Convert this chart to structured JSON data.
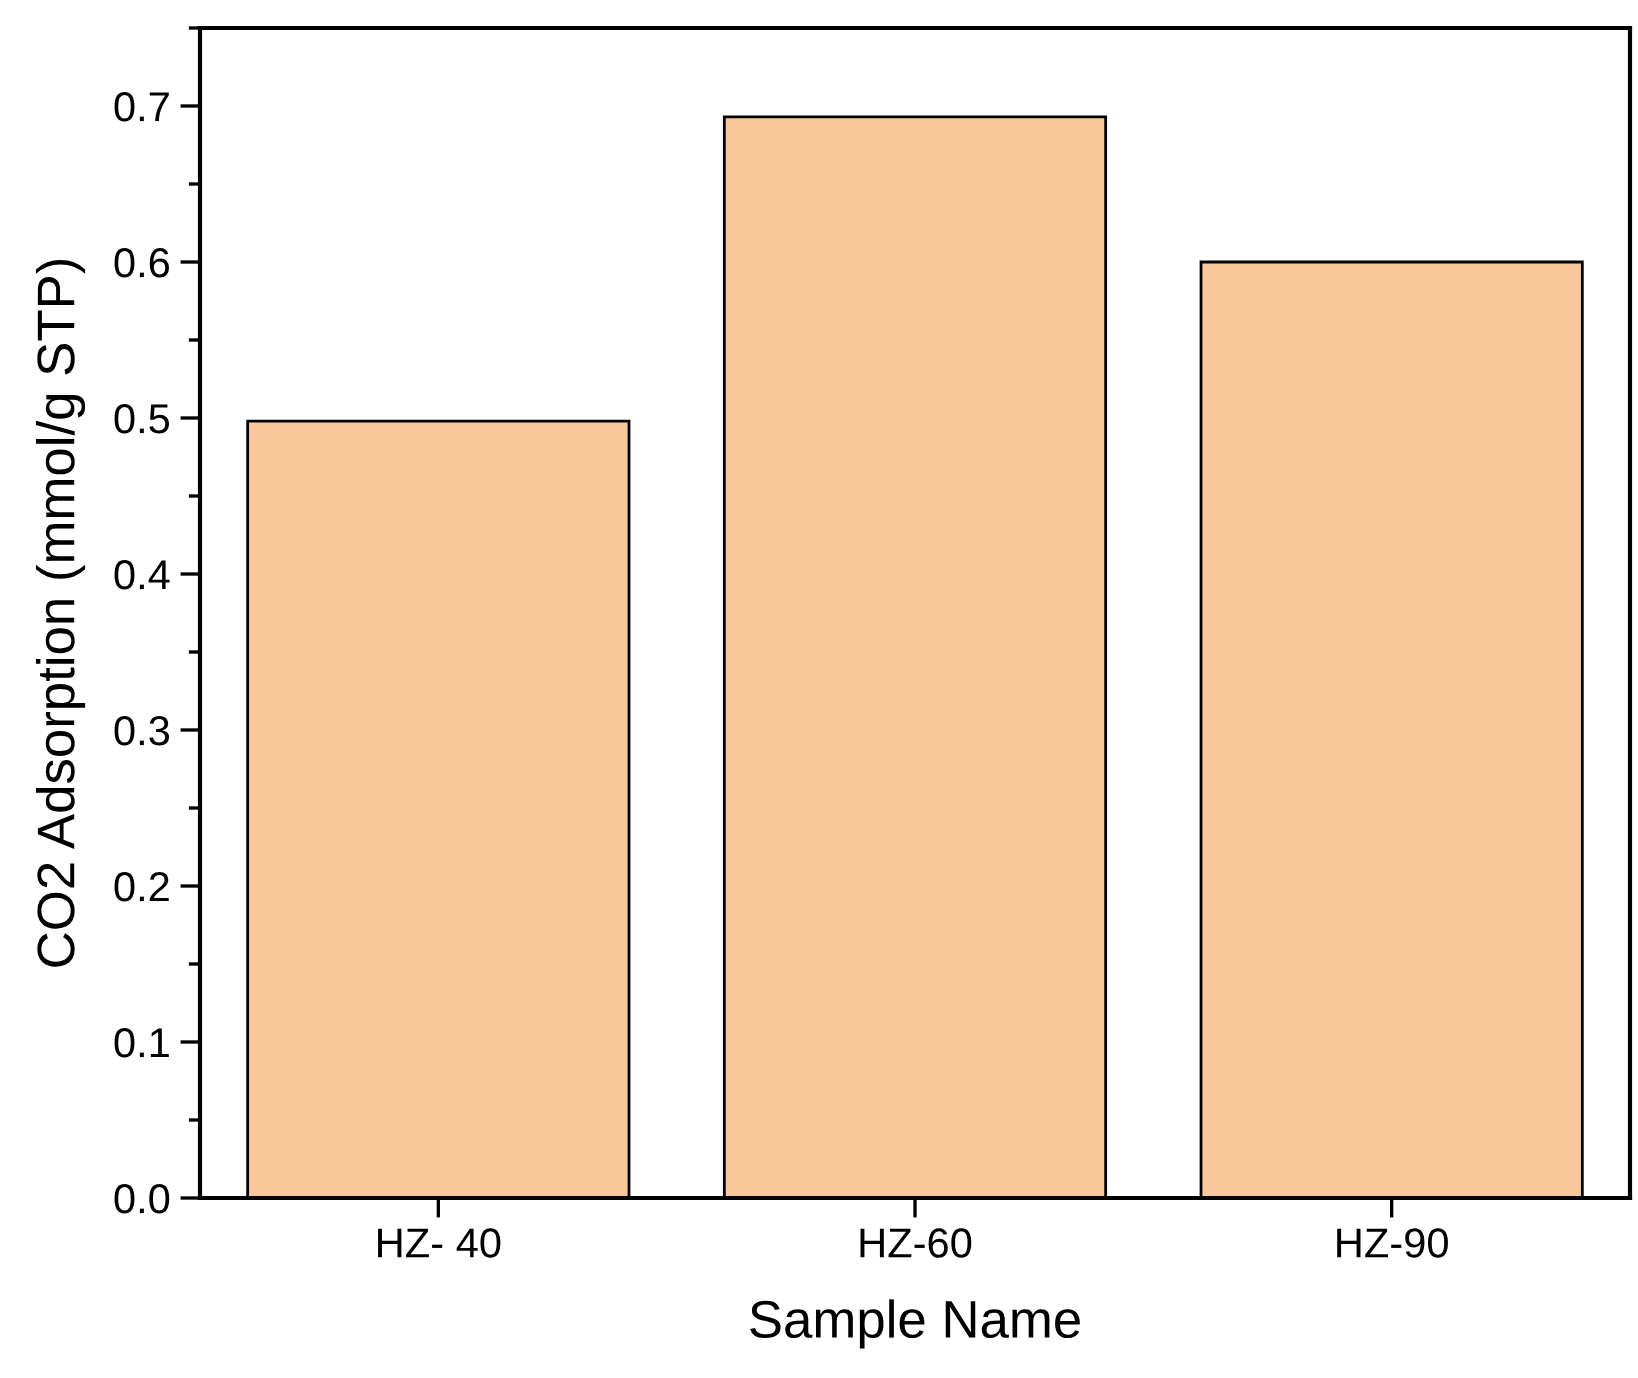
{
  "chart_data": {
    "type": "bar",
    "xlabel": "Sample Name",
    "ylabel": "CO2 Adsorption (mmol/g STP)",
    "categories": [
      "HZ- 40",
      "HZ-60",
      "HZ-90"
    ],
    "values": [
      0.498,
      0.693,
      0.6
    ],
    "color": "#f9c799",
    "ylim": [
      0,
      0.75
    ],
    "yticks": [
      {
        "value": 0,
        "label": "0.0"
      },
      0.1,
      0.2,
      0.3,
      0.4,
      0.5,
      0.6,
      0.7
    ],
    "grid": false
  }
}
